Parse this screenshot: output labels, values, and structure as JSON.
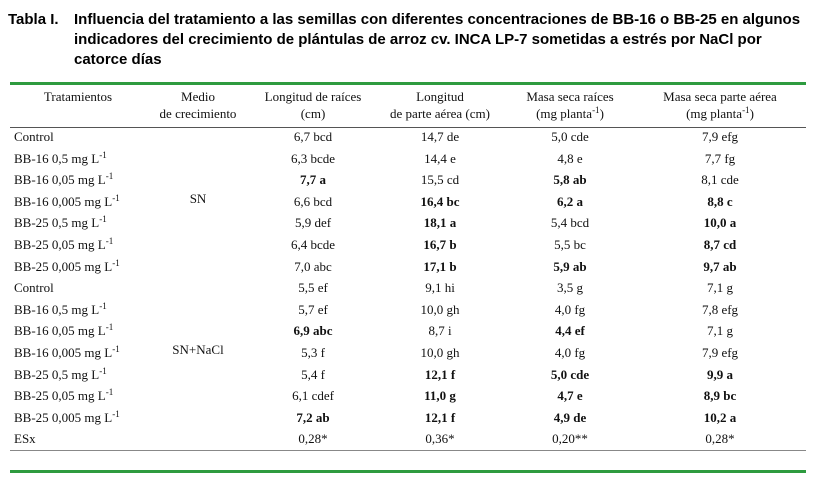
{
  "title": {
    "label": "Tabla I.",
    "text": "Influencia del tratamiento a las semillas con diferentes concentraciones de BB-16 o BB-25 en algunos indicadores del crecimiento de plántulas de arroz cv. INCA LP-7 sometidas a estrés por NaCl por catorce días"
  },
  "table": {
    "header": [
      [
        "Tratamientos"
      ],
      [
        "Medio",
        "de crecimiento"
      ],
      [
        "Longitud de raíces",
        "(cm)"
      ],
      [
        "Longitud",
        "de parte aérea (cm)"
      ],
      [
        "Masa seca raíces",
        {
          "pre": "(mg planta",
          "sup": "-1",
          "post": ")"
        }
      ],
      [
        "Masa seca parte aérea",
        {
          "pre": "(mg planta",
          "sup": "-1",
          "post": ")"
        }
      ]
    ],
    "groups": [
      {
        "medium": "SN",
        "rows": [
          {
            "treatment": "Control",
            "cells": [
              "6,7 bcd",
              "14,7 de",
              "5,0 cde",
              "7,9 efg"
            ]
          },
          {
            "treatment": {
              "pre": "BB-16 0,5 mg L",
              "sup": "-1"
            },
            "cells": [
              "6,3 bcde",
              "14,4 e",
              "4,8 e",
              "7,7 fg"
            ]
          },
          {
            "treatment": {
              "pre": "BB-16 0,05 mg L",
              "sup": "-1"
            },
            "cells": [
              {
                "text": "7,7 a",
                "bold": true
              },
              "15,5 cd",
              {
                "text": "5,8 ab",
                "bold": true
              },
              "8,1 cde"
            ]
          },
          {
            "treatment": {
              "pre": "BB-16 0,005 mg L",
              "sup": "-1"
            },
            "cells": [
              "6,6 bcd",
              {
                "text": "16,4 bc",
                "bold": true
              },
              {
                "text": "6,2 a",
                "bold": true
              },
              {
                "text": "8,8 c",
                "bold": true
              }
            ]
          },
          {
            "treatment": {
              "pre": "BB-25 0,5 mg L",
              "sup": "-1"
            },
            "cells": [
              "5,9 def",
              {
                "text": "18,1 a",
                "bold": true
              },
              "5,4 bcd",
              {
                "text": "10,0 a",
                "bold": true
              }
            ]
          },
          {
            "treatment": {
              "pre": "BB-25 0,05 mg L",
              "sup": "-1"
            },
            "cells": [
              "6,4 bcde",
              {
                "text": "16,7 b",
                "bold": true
              },
              "5,5 bc",
              {
                "text": "8,7 cd",
                "bold": true
              }
            ]
          },
          {
            "treatment": {
              "pre": "BB-25 0,005 mg L",
              "sup": "-1"
            },
            "cells": [
              "7,0 abc",
              {
                "text": "17,1 b",
                "bold": true
              },
              {
                "text": "5,9 ab",
                "bold": true
              },
              {
                "text": "9,7 ab",
                "bold": true
              }
            ]
          }
        ]
      },
      {
        "medium": "SN+NaCl",
        "rows": [
          {
            "treatment": "Control",
            "cells": [
              "5,5 ef",
              "9,1 hi",
              "3,5 g",
              "7,1 g"
            ]
          },
          {
            "treatment": {
              "pre": "BB-16 0,5 mg L",
              "sup": "-1"
            },
            "cells": [
              "5,7 ef",
              "10,0 gh",
              "4,0 fg",
              "7,8 efg"
            ]
          },
          {
            "treatment": {
              "pre": "BB-16 0,05 mg L",
              "sup": "-1"
            },
            "cells": [
              {
                "text": "6,9 abc",
                "bold": true
              },
              "8,7 i",
              {
                "text": "4,4 ef",
                "bold": true
              },
              "7,1 g"
            ]
          },
          {
            "treatment": {
              "pre": "BB-16 0,005 mg L",
              "sup": "-1"
            },
            "cells": [
              "5,3 f",
              "10,0 gh",
              "4,0 fg",
              "7,9 efg"
            ]
          },
          {
            "treatment": {
              "pre": "BB-25 0,5 mg L",
              "sup": "-1"
            },
            "cells": [
              "5,4 f",
              {
                "text": "12,1 f",
                "bold": true
              },
              {
                "text": "5,0 cde",
                "bold": true
              },
              {
                "text": "9,9 a",
                "bold": true
              }
            ]
          },
          {
            "treatment": {
              "pre": "BB-25 0,05 mg L",
              "sup": "-1"
            },
            "cells": [
              "6,1 cdef",
              {
                "text": "11,0 g",
                "bold": true
              },
              {
                "text": "4,7 e",
                "bold": true
              },
              {
                "text": "8,9 bc",
                "bold": true
              }
            ]
          },
          {
            "treatment": {
              "pre": "BB-25 0,005 mg L",
              "sup": "-1"
            },
            "cells": [
              {
                "text": "7,2 ab",
                "bold": true
              },
              {
                "text": "12,1 f",
                "bold": true
              },
              {
                "text": "4,9 de",
                "bold": true
              },
              {
                "text": "10,2 a",
                "bold": true
              }
            ]
          }
        ]
      }
    ],
    "footer": {
      "treatment": "ESx",
      "cells": [
        "0,28*",
        "0,36*",
        "0,20**",
        "0,28*"
      ]
    }
  }
}
